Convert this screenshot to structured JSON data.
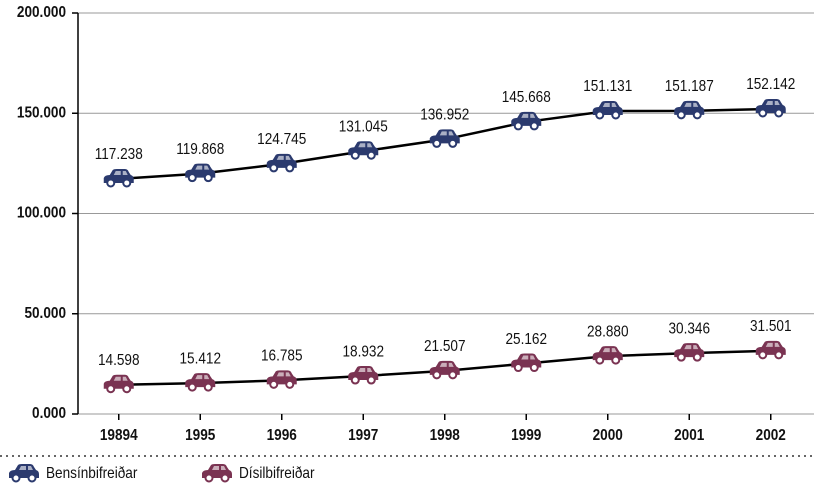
{
  "chart_data": {
    "type": "line",
    "categories": [
      "19894",
      "1995",
      "1996",
      "1997",
      "1998",
      "1999",
      "2000",
      "2001",
      "2002"
    ],
    "series": [
      {
        "name": "Bensínbifreiðar",
        "color": "#2b3a6e",
        "values": [
          117238,
          119868,
          124745,
          131045,
          136952,
          145668,
          151131,
          151187,
          152142
        ],
        "value_labels": [
          "117.238",
          "119.868",
          "124.745",
          "131.045",
          "136.952",
          "145.668",
          "151.131",
          "151.187",
          "152.142"
        ]
      },
      {
        "name": "Dísilbifreiðar",
        "color": "#7a3352",
        "values": [
          14598,
          15412,
          16785,
          18932,
          21507,
          25162,
          28880,
          30346,
          31501
        ],
        "value_labels": [
          "14.598",
          "15.412",
          "16.785",
          "18.932",
          "21.507",
          "25.162",
          "28.880",
          "30.346",
          "31.501"
        ]
      }
    ],
    "ylim": [
      0,
      200000
    ],
    "yticks": [
      {
        "value": 0,
        "label": "0.000"
      },
      {
        "value": 50000,
        "label": "50.000"
      },
      {
        "value": 100000,
        "label": "100.000"
      },
      {
        "value": 150000,
        "label": "150.000"
      },
      {
        "value": 200000,
        "label": "200.000"
      }
    ],
    "grid": true,
    "legend": "bottom"
  }
}
